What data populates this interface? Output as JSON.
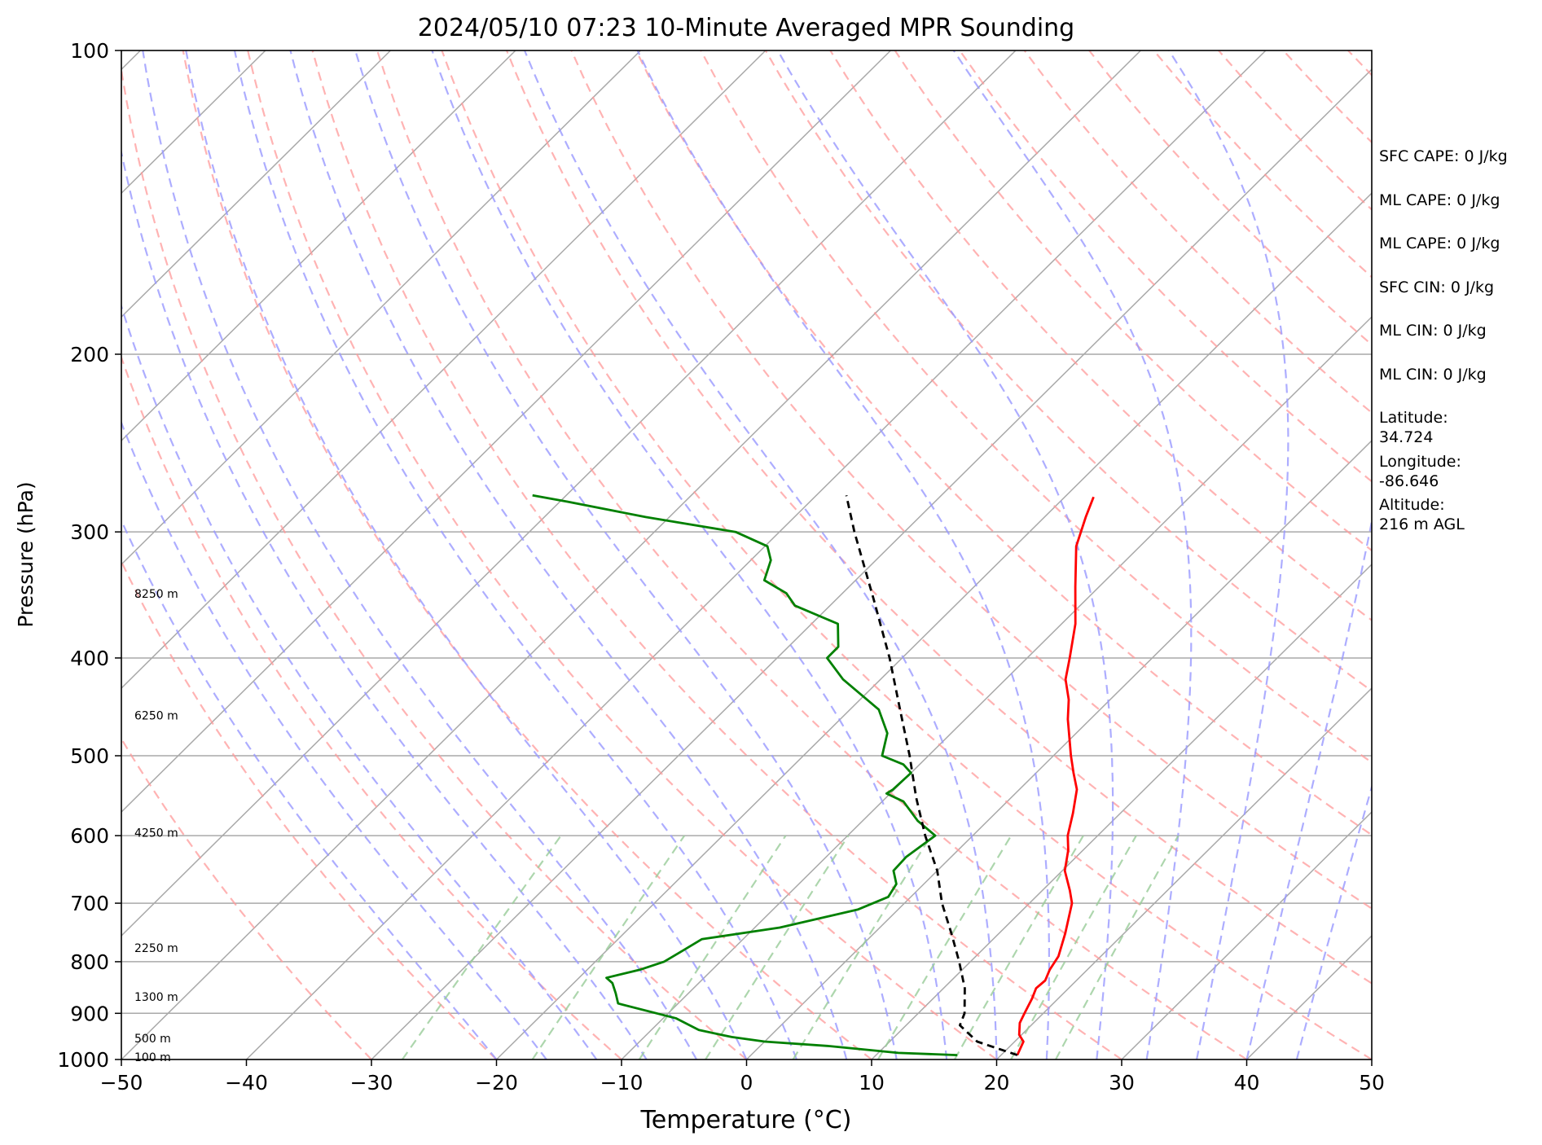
{
  "chart_data": {
    "type": "skew-t",
    "title": "2024/05/10 07:23 10-Minute Averaged MPR Sounding",
    "xlabel": "Temperature (°C)",
    "ylabel": "Pressure (hPa)",
    "xlim": [
      -50,
      50
    ],
    "ylim": [
      1000,
      100
    ],
    "y_scale": "log",
    "x_ticks": [
      -50,
      -40,
      -30,
      -20,
      -10,
      0,
      10,
      20,
      30,
      40,
      50
    ],
    "x_tick_labels": [
      "−50",
      "−40",
      "−30",
      "−20",
      "−10",
      "0",
      "10",
      "20",
      "30",
      "40",
      "50"
    ],
    "y_ticks": [
      1000,
      900,
      800,
      700,
      600,
      500,
      400,
      300,
      200,
      100
    ],
    "y_tick_labels": [
      "1000",
      "900",
      "800",
      "700",
      "600",
      "500",
      "400",
      "300",
      "200",
      "100"
    ],
    "grid": true,
    "background_lines": {
      "isotherms_color": "#a9a9a9",
      "dry_adiabats_color": "#ff9999",
      "moist_adiabats_color": "#9999ff",
      "mixing_ratio_color": "#99cc99"
    },
    "height_labels": [
      {
        "pressure": 996,
        "text": "100 m"
      },
      {
        "pressure": 955,
        "text": "500 m"
      },
      {
        "pressure": 868,
        "text": "1300 m"
      },
      {
        "pressure": 777,
        "text": "2250 m"
      },
      {
        "pressure": 597,
        "text": "4250 m"
      },
      {
        "pressure": 457,
        "text": "6250 m"
      },
      {
        "pressure": 346,
        "text": "8250 m"
      }
    ],
    "series": [
      {
        "kind": "temperature",
        "color": "#ff0000",
        "points": [
          [
            990,
            21.3
          ],
          [
            975,
            21.0
          ],
          [
            960,
            20.7
          ],
          [
            945,
            19.8
          ],
          [
            920,
            18.9
          ],
          [
            900,
            18.5
          ],
          [
            870,
            17.9
          ],
          [
            850,
            17.4
          ],
          [
            835,
            17.5
          ],
          [
            815,
            17.0
          ],
          [
            790,
            16.6
          ],
          [
            750,
            15.3
          ],
          [
            700,
            13.4
          ],
          [
            680,
            12.2
          ],
          [
            650,
            10.2
          ],
          [
            620,
            8.8
          ],
          [
            600,
            7.6
          ],
          [
            570,
            6.2
          ],
          [
            540,
            4.6
          ],
          [
            520,
            3.0
          ],
          [
            500,
            1.4
          ],
          [
            460,
            -1.8
          ],
          [
            440,
            -3.3
          ],
          [
            420,
            -5.2
          ],
          [
            400,
            -6.6
          ],
          [
            370,
            -8.9
          ],
          [
            340,
            -11.9
          ],
          [
            310,
            -15.1
          ],
          [
            290,
            -16.7
          ],
          [
            277,
            -17.7
          ]
        ]
      },
      {
        "kind": "dewpoint",
        "color": "#008000",
        "points": [
          [
            990,
            16.5
          ],
          [
            985,
            11.6
          ],
          [
            970,
            5.6
          ],
          [
            960,
            0.0
          ],
          [
            950,
            -3.0
          ],
          [
            935,
            -6.2
          ],
          [
            910,
            -9.0
          ],
          [
            880,
            -14.8
          ],
          [
            860,
            -15.8
          ],
          [
            840,
            -16.9
          ],
          [
            830,
            -17.8
          ],
          [
            815,
            -15.8
          ],
          [
            800,
            -14.5
          ],
          [
            780,
            -13.9
          ],
          [
            760,
            -13.3
          ],
          [
            740,
            -8.0
          ],
          [
            710,
            -3.2
          ],
          [
            690,
            -1.8
          ],
          [
            670,
            -2.2
          ],
          [
            650,
            -3.5
          ],
          [
            630,
            -3.6
          ],
          [
            600,
            -3.0
          ],
          [
            580,
            -5.6
          ],
          [
            555,
            -8.3
          ],
          [
            545,
            -10.3
          ],
          [
            540,
            -10.1
          ],
          [
            520,
            -10.0
          ],
          [
            510,
            -11.3
          ],
          [
            500,
            -13.7
          ],
          [
            475,
            -15.1
          ],
          [
            450,
            -17.7
          ],
          [
            420,
            -23.0
          ],
          [
            400,
            -26.0
          ],
          [
            390,
            -26.0
          ],
          [
            370,
            -27.9
          ],
          [
            355,
            -32.8
          ],
          [
            345,
            -34.5
          ],
          [
            335,
            -37.3
          ],
          [
            320,
            -38.4
          ],
          [
            310,
            -39.8
          ],
          [
            300,
            -43.5
          ],
          [
            290,
            -51.9
          ],
          [
            280,
            -59.4
          ],
          [
            276,
            -62.7
          ]
        ]
      },
      {
        "kind": "parcel",
        "color": "#000000",
        "dashed": true,
        "points": [
          [
            990,
            21.3
          ],
          [
            960,
            17.0
          ],
          [
            925,
            14.3
          ],
          [
            900,
            13.7
          ],
          [
            850,
            11.7
          ],
          [
            800,
            9.1
          ],
          [
            750,
            6.2
          ],
          [
            700,
            3.0
          ],
          [
            650,
            0.0
          ],
          [
            600,
            -3.8
          ],
          [
            550,
            -7.6
          ],
          [
            500,
            -11.5
          ],
          [
            450,
            -16.0
          ],
          [
            400,
            -21.0
          ],
          [
            350,
            -27.0
          ],
          [
            300,
            -34.0
          ],
          [
            276,
            -37.6
          ]
        ]
      }
    ]
  },
  "info_panel": [
    "SFC CAPE: 0 J/kg",
    "ML CAPE: 0 J/kg",
    "ML CAPE: 0 J/kg",
    "SFC CIN: 0 J/kg",
    "ML CIN: 0 J/kg",
    "ML CIN: 0 J/kg",
    "Latitude:\n34.724",
    "Longitude:\n-86.646",
    "Altitude:\n216 m AGL"
  ]
}
